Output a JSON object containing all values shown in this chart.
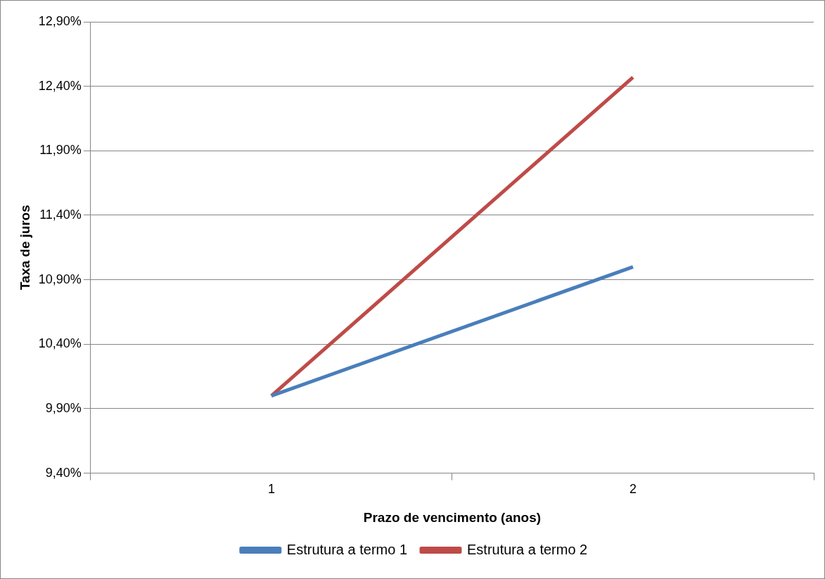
{
  "chart_data": {
    "type": "line",
    "xlabel": "Prazo de vencimento (anos)",
    "ylabel": "Taxa de juros",
    "categories": [
      "1",
      "2"
    ],
    "series": [
      {
        "name": "Estrutura a termo 1",
        "color": "#4a7ebb",
        "values": [
          10.0,
          11.0
        ]
      },
      {
        "name": "Estrutura a termo 2",
        "color": "#be4b48",
        "values": [
          10.0,
          12.47
        ]
      }
    ],
    "ylim": [
      9.4,
      12.9
    ],
    "yticks": [
      {
        "value": 9.4,
        "label": "9,40%"
      },
      {
        "value": 9.9,
        "label": "9,90%"
      },
      {
        "value": 10.4,
        "label": "10,40%"
      },
      {
        "value": 10.9,
        "label": "10,90%"
      },
      {
        "value": 11.4,
        "label": "11,40%"
      },
      {
        "value": 11.9,
        "label": "11,90%"
      },
      {
        "value": 12.4,
        "label": "12,40%"
      },
      {
        "value": 12.9,
        "label": "12,90%"
      }
    ],
    "grid": "y",
    "legend": "bottom",
    "marker": "none",
    "line_style": "solid"
  }
}
